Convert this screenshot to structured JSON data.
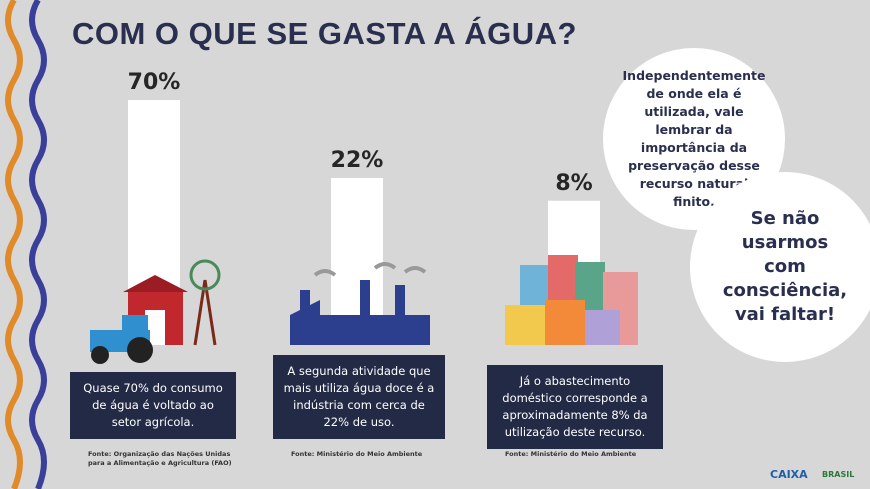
{
  "title": "COM O QUE SE GASTA A ÁGUA?",
  "items": [
    {
      "value": 70,
      "value_label": "70%",
      "description": "Quase 70% do consumo de água é voltado ao setor agrícola.",
      "source": "Fonte: Organização das Nações Unidas para a Alimentação e Agricultura (FAO)"
    },
    {
      "value": 22,
      "value_label": "22%",
      "description": "A segunda atividade que mais utiliza água doce é a indústria com cerca de 22% de uso.",
      "source": "Fonte: Ministério do Meio Ambiente"
    },
    {
      "value": 8,
      "value_label": "8%",
      "description": "Já o abastecimento doméstico corresponde a aproximadamente 8% da utilização deste recurso.",
      "source": "Fonte: Ministério do Meio Ambiente"
    }
  ],
  "bubbles": [
    "Independentemente de onde ela é utilizada, vale lembrar da importância da preservação desse recurso natural finito.",
    "Se não usarmos com consciência, vai faltar!"
  ],
  "logos": [
    "CAIXA",
    "BRASIL"
  ]
}
